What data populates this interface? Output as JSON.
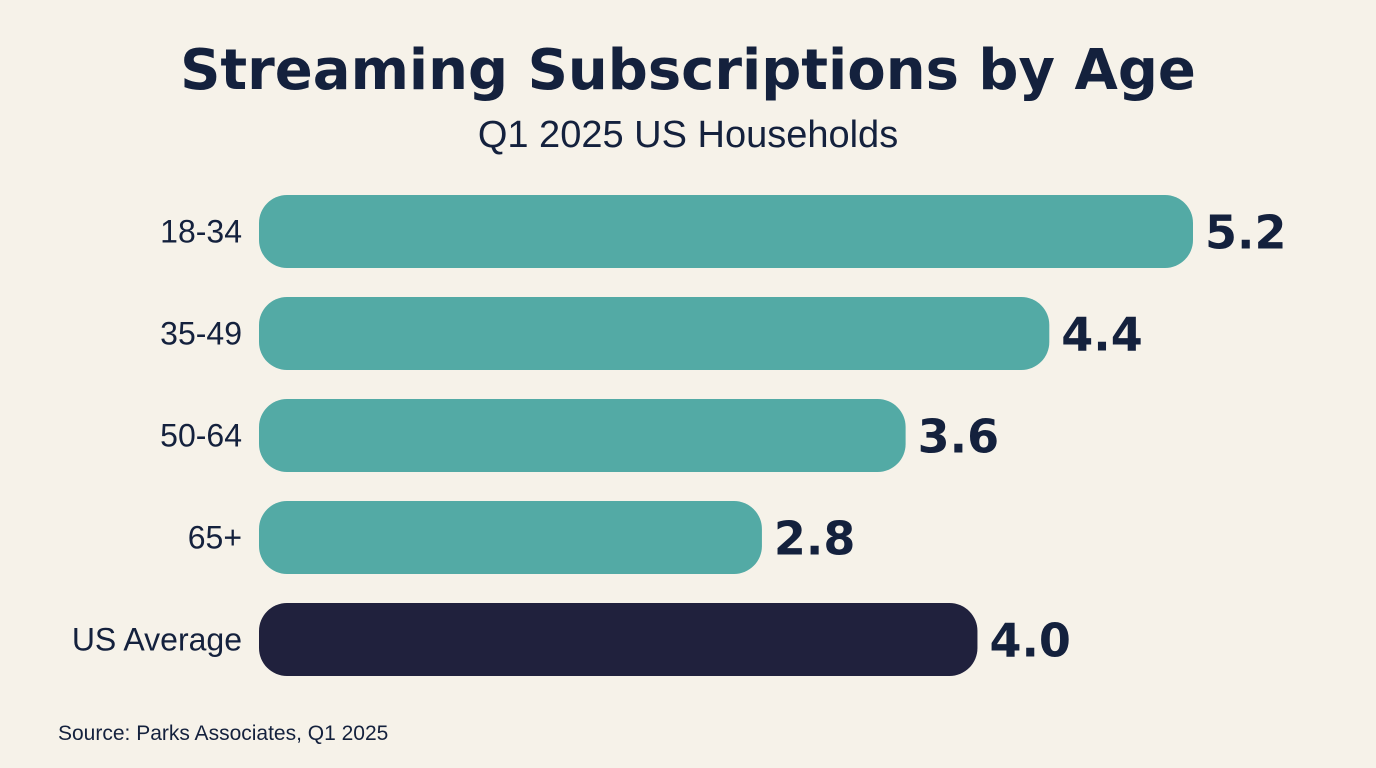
{
  "chart_data": {
    "type": "bar",
    "orientation": "horizontal",
    "title": "Streaming Subscriptions by Age",
    "subtitle": "Q1 2025 US Households",
    "categories": [
      "18-34",
      "35-49",
      "50-64",
      "65+",
      "US Average"
    ],
    "values": [
      5.2,
      4.4,
      3.6,
      2.8,
      4.0
    ],
    "value_labels": [
      "5.2",
      "4.4",
      "3.6",
      "2.8",
      "4.0"
    ],
    "colors": [
      "#53aaa5",
      "#53aaa5",
      "#53aaa5",
      "#53aaa5",
      "#20213d"
    ],
    "xlim": [
      0,
      5.2
    ],
    "xlabel": "",
    "ylabel": "",
    "grid": false,
    "legend": "none"
  },
  "source": "Source: Parks Associates, Q1 2025"
}
